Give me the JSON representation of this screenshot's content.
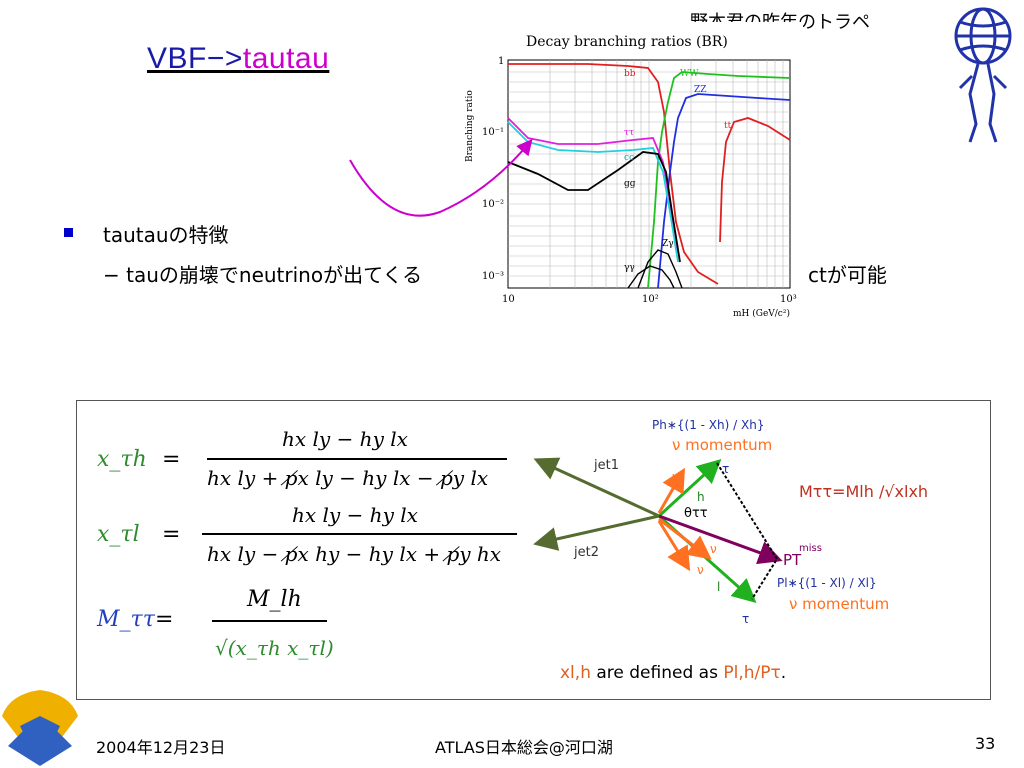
{
  "slide": {
    "top_note": "野本君の昨年のトラペ",
    "title_part1": "VBF−>",
    "title_part2": "tautau",
    "bullet": "tautauの特徴",
    "sub_bullet_left": "− tauの崩壊でneutrinoが出てくる",
    "sub_bullet_right": "ctが可能"
  },
  "br_chart": {
    "title": "Decay branching ratios  (BR)",
    "ylabel": "Branching ratio",
    "xlabel": "mH (GeV/c²)",
    "x_ticks": [
      "10",
      "10²",
      "10³"
    ],
    "y_ticks": [
      "1",
      "10⁻¹",
      "10⁻²",
      "10⁻³"
    ],
    "curve_labels": [
      "bb",
      "WW",
      "ZZ",
      "tt",
      "ττ",
      "cc",
      "gg",
      "Zγ",
      "γγ"
    ],
    "colors": {
      "bb": "#e02020",
      "ww": "#20c020",
      "zz": "#2030e0",
      "tt": "#e02020",
      "tautau": "#e020e0",
      "cc": "#20d0e0",
      "gg": "#000000",
      "zgamma": "#000000",
      "gammagamma": "#000000"
    }
  },
  "formulas": {
    "xth_lhs": "x_τh",
    "xth_num": "hx ly − hy lx",
    "xth_den": "hx ly + p̸x ly − hy lx − p̸y lx",
    "xtl_lhs": "x_τl",
    "xtl_num": "hx ly − hy lx",
    "xtl_den": "hx ly − p̸x hy − hy lx + p̸y hx",
    "mtt_lhs": "M_ττ",
    "mtt_num": "M_lh",
    "mtt_den": "√(x_τh x_τl)",
    "colors": {
      "lhs_green": "#2e8b2e",
      "lhs_blue": "#2040c0",
      "met_purple": "#a040a0"
    }
  },
  "diagram": {
    "jet1": "jet1",
    "jet2": "jet2",
    "ph_formula": "Ph∗{(1 - Xh) / Xh}",
    "nu_momentum_top": "ν momentum",
    "tau_top": "τ",
    "h_label": "h",
    "theta_label": "θττ",
    "nu_1": "ν",
    "nu_2": "ν",
    "nu_3": "ν",
    "l_label": "l",
    "pt_miss": "PT",
    "miss_sup": "miss",
    "pl_formula": "Pl∗{(1 - Xl) / Xl}",
    "nu_momentum_bottom": "ν momentum",
    "tau_bottom": "τ",
    "mtt_eq": "Mττ=Mlh /√xlxh",
    "definition_a": "xl,h",
    "definition_b": " are defined as ",
    "definition_c": "Pl,h/Pτ",
    "definition_d": "."
  },
  "footer": {
    "date": "2004年12月23日",
    "center": "ATLAS日本総会@河口湖",
    "page": "33"
  }
}
